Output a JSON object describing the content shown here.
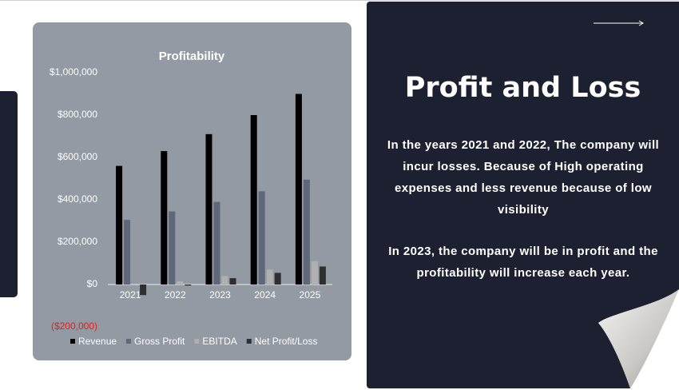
{
  "chart_data": {
    "type": "bar",
    "title": "Profitability",
    "categories": [
      "2021",
      "2022",
      "2023",
      "2024",
      "2025"
    ],
    "series": [
      {
        "name": "Revenue",
        "color": "#000000",
        "values": [
          560000,
          630000,
          710000,
          800000,
          900000
        ]
      },
      {
        "name": "Gross Profit",
        "color": "#5f6878",
        "values": [
          305000,
          345000,
          390000,
          440000,
          495000
        ]
      },
      {
        "name": "EBITDA",
        "color": "#b0b0b0",
        "values": [
          0,
          15000,
          40000,
          70000,
          110000
        ]
      },
      {
        "name": "Net Profit/Loss",
        "color": "#2f2f2f",
        "values": [
          -50000,
          -5000,
          30000,
          55000,
          85000
        ]
      }
    ],
    "ylim": [
      -200000,
      1000000
    ],
    "yticks": [
      {
        "value": -200000,
        "label": "($200,000)"
      },
      {
        "value": 0,
        "label": "$0"
      },
      {
        "value": 200000,
        "label": "$200,000"
      },
      {
        "value": 400000,
        "label": "$400,000"
      },
      {
        "value": 600000,
        "label": "$600,000"
      },
      {
        "value": 800000,
        "label": "$800,000"
      },
      {
        "value": 1000000,
        "label": "$1,000,000"
      }
    ],
    "grid": false,
    "legend": "bottom"
  },
  "slide": {
    "title": "Profit and Loss",
    "paragraphs": [
      "In the years 2021 and 2022, The company will incur losses. Because of High operating expenses and less revenue because of low visibility",
      "In 2023, the company will be in profit and the profitability will increase each year."
    ]
  }
}
